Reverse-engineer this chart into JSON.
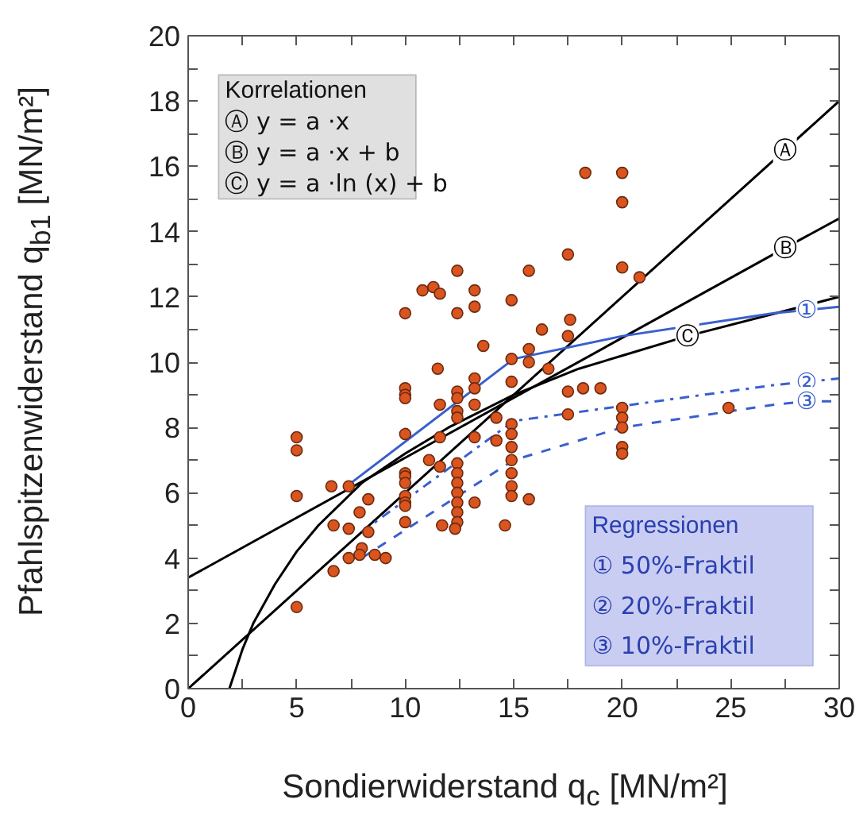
{
  "chart_data": {
    "type": "scatter",
    "xlabel": "Sondierwiderstand q$_{c}$ [MN/m²]",
    "ylabel": "Pfahlspitzenwiderstand q$_{b1}$ [MN/m²]",
    "xlim": [
      0,
      30
    ],
    "ylim": [
      0,
      20
    ],
    "xticks": [
      0,
      {
        "value": 2.5,
        "label": null
      },
      5,
      {
        "value": 7.5,
        "label": null
      },
      10,
      {
        "value": 12.5,
        "label": null
      },
      15,
      {
        "value": 17.5,
        "label": null
      },
      20,
      {
        "value": 22.5,
        "label": null
      },
      25,
      {
        "value": 27.5,
        "label": null
      },
      30
    ],
    "yticks": [
      0,
      {
        "value": 1,
        "label": null
      },
      2,
      {
        "value": 3,
        "label": null
      },
      4,
      {
        "value": 5,
        "label": null
      },
      6,
      {
        "value": 7,
        "label": null
      },
      8,
      {
        "value": 9,
        "label": null
      },
      10,
      {
        "value": 11,
        "label": null
      },
      12,
      {
        "value": 13,
        "label": null
      },
      14,
      {
        "value": 15,
        "label": null
      },
      16,
      {
        "value": 17,
        "label": null
      },
      18,
      {
        "value": 19,
        "label": null
      },
      20
    ],
    "grid": false,
    "annotations": [
      "Korrelationen",
      "Ⓐ  y = a ·x",
      "Ⓑ  y = a ·x + b",
      "Ⓒ  y = a ·ln (x) + b",
      "Regressionen",
      "①  50%-Fraktil",
      "②  20%-Fraktil",
      "③  10%-Fraktil"
    ],
    "series": [
      {
        "marker": "circle",
        "color": "#d9541e",
        "x": [
          5,
          5,
          5,
          5,
          6.6,
          7.4,
          8.3,
          7.9,
          6.7,
          7.4,
          8.3,
          8.0,
          7.9,
          7.4,
          8.6,
          9.1,
          6.7,
          10,
          10,
          10,
          10,
          10,
          10,
          10,
          10,
          10,
          10,
          10,
          10,
          18.3,
          20,
          20,
          17.5,
          12.4,
          15.7,
          20,
          10.8,
          11.3,
          11.6,
          13.2,
          13.2,
          14.9,
          12.4,
          17.6,
          16.3,
          17.5,
          13.6,
          15.7,
          15.7,
          14.9,
          16.6,
          14.9,
          11.5,
          13.2,
          13.2,
          12.4,
          12.4,
          17.5,
          18.2,
          19.0,
          11.6,
          13.2,
          12.4,
          12.4,
          14.2,
          17.5,
          14.9,
          20,
          20,
          20,
          11.6,
          13.2,
          14.2,
          14.9,
          14.9,
          14.9,
          14.9,
          14.9,
          14.9,
          20,
          20,
          11.1,
          11.6,
          12.4,
          12.4,
          12.4,
          12.4,
          12.4,
          12.4,
          12.4,
          13.2,
          15.7,
          11.7,
          12.3,
          14.6,
          20.8,
          24.9
        ],
        "values": [
          7.7,
          7.3,
          5.9,
          2.5,
          6.2,
          6.2,
          5.8,
          5.4,
          5.0,
          4.9,
          4.8,
          4.3,
          4.1,
          4.0,
          4.1,
          4.0,
          3.6,
          11.5,
          9.2,
          9.0,
          8.9,
          7.8,
          6.6,
          6.5,
          6.3,
          5.9,
          5.7,
          5.6,
          5.1,
          15.8,
          15.8,
          14.9,
          13.3,
          12.8,
          12.8,
          12.9,
          12.2,
          12.3,
          12.1,
          12.2,
          11.7,
          11.9,
          11.5,
          11.3,
          11.0,
          10.8,
          10.5,
          10.4,
          10.0,
          10.1,
          9.8,
          9.4,
          9.8,
          9.5,
          9.2,
          9.1,
          8.9,
          9.1,
          9.2,
          9.2,
          8.7,
          8.7,
          8.5,
          8.3,
          8.3,
          8.4,
          8.1,
          8.6,
          8.3,
          8.0,
          7.7,
          7.7,
          7.6,
          7.8,
          7.4,
          7.0,
          6.6,
          6.2,
          5.9,
          7.4,
          7.2,
          7.0,
          6.8,
          6.9,
          6.6,
          6.3,
          6.0,
          5.7,
          5.4,
          5.1,
          5.7,
          5.8,
          5.0,
          4.9,
          5.0,
          12.6,
          8.6
        ]
      },
      {
        "type": "line",
        "name": "Ⓐ",
        "color": "#000000",
        "line_style": "solid",
        "x": [
          0,
          27.5,
          30
        ],
        "values": [
          0,
          16.5,
          18
        ]
      },
      {
        "type": "line",
        "name": "Ⓑ",
        "color": "#000000",
        "line_style": "solid",
        "x": [
          0,
          27.5,
          30
        ],
        "values": [
          3.4,
          13.5,
          14.4
        ]
      },
      {
        "type": "line",
        "name": "Ⓒ",
        "color": "#000000",
        "line_style": "solid",
        "x": [
          1.9,
          2.5,
          3,
          4,
          5,
          6,
          8,
          10,
          12,
          15,
          18,
          20,
          23,
          30
        ],
        "values": [
          0,
          1.2,
          2.0,
          3.2,
          4.2,
          5.0,
          6.3,
          7.2,
          8.0,
          9.0,
          9.8,
          10.2,
          10.8,
          12.0
        ]
      },
      {
        "type": "line",
        "name": "①",
        "color": "#3a5fcd",
        "line_style": "solid",
        "x": [
          7.5,
          15,
          20,
          27,
          28.5,
          30
        ],
        "values": [
          6.3,
          10.1,
          10.8,
          11.5,
          11.6,
          11.7
        ]
      },
      {
        "type": "line",
        "name": "②",
        "color": "#3a5fcd",
        "line_style": "dashdot",
        "x": [
          8,
          15,
          27,
          28.5,
          30
        ],
        "values": [
          4.8,
          8.2,
          9.3,
          9.4,
          9.5
        ]
      },
      {
        "type": "line",
        "name": "③",
        "color": "#3a5fcd",
        "line_style": "dashed",
        "x": [
          8,
          15,
          20,
          27,
          28.5,
          30
        ],
        "values": [
          4.0,
          7.0,
          8.0,
          8.7,
          8.8,
          8.8
        ]
      }
    ]
  }
}
